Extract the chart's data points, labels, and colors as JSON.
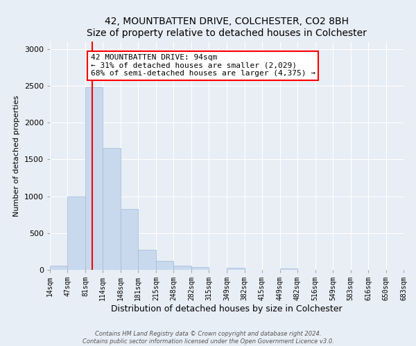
{
  "title": "42, MOUNTBATTEN DRIVE, COLCHESTER, CO2 8BH",
  "subtitle": "Size of property relative to detached houses in Colchester",
  "xlabel": "Distribution of detached houses by size in Colchester",
  "ylabel": "Number of detached properties",
  "bin_edges": [
    14,
    47,
    81,
    114,
    148,
    181,
    215,
    248,
    282,
    315,
    349,
    382,
    415,
    449,
    482,
    516,
    549,
    583,
    616,
    650,
    683
  ],
  "bar_heights": [
    55,
    1000,
    2480,
    1650,
    830,
    270,
    125,
    55,
    35,
    0,
    30,
    0,
    0,
    20,
    0,
    0,
    0,
    0,
    0,
    0
  ],
  "bar_color": "#c8d9ee",
  "bar_edgecolor": "#a0b8d8",
  "property_line_x": 94,
  "property_line_color": "red",
  "ylim": [
    0,
    3100
  ],
  "yticks": [
    0,
    500,
    1000,
    1500,
    2000,
    2500,
    3000
  ],
  "xtick_labels": [
    "14sqm",
    "47sqm",
    "81sqm",
    "114sqm",
    "148sqm",
    "181sqm",
    "215sqm",
    "248sqm",
    "282sqm",
    "315sqm",
    "349sqm",
    "382sqm",
    "415sqm",
    "449sqm",
    "482sqm",
    "516sqm",
    "549sqm",
    "583sqm",
    "616sqm",
    "650sqm",
    "683sqm"
  ],
  "annotation_title": "42 MOUNTBATTEN DRIVE: 94sqm",
  "annotation_line1": "← 31% of detached houses are smaller (2,029)",
  "annotation_line2": "68% of semi-detached houses are larger (4,375) →",
  "footer_line1": "Contains HM Land Registry data © Crown copyright and database right 2024.",
  "footer_line2": "Contains public sector information licensed under the Open Government Licence v3.0.",
  "background_color": "#e8eef5",
  "plot_bg_color": "#e8eef5"
}
